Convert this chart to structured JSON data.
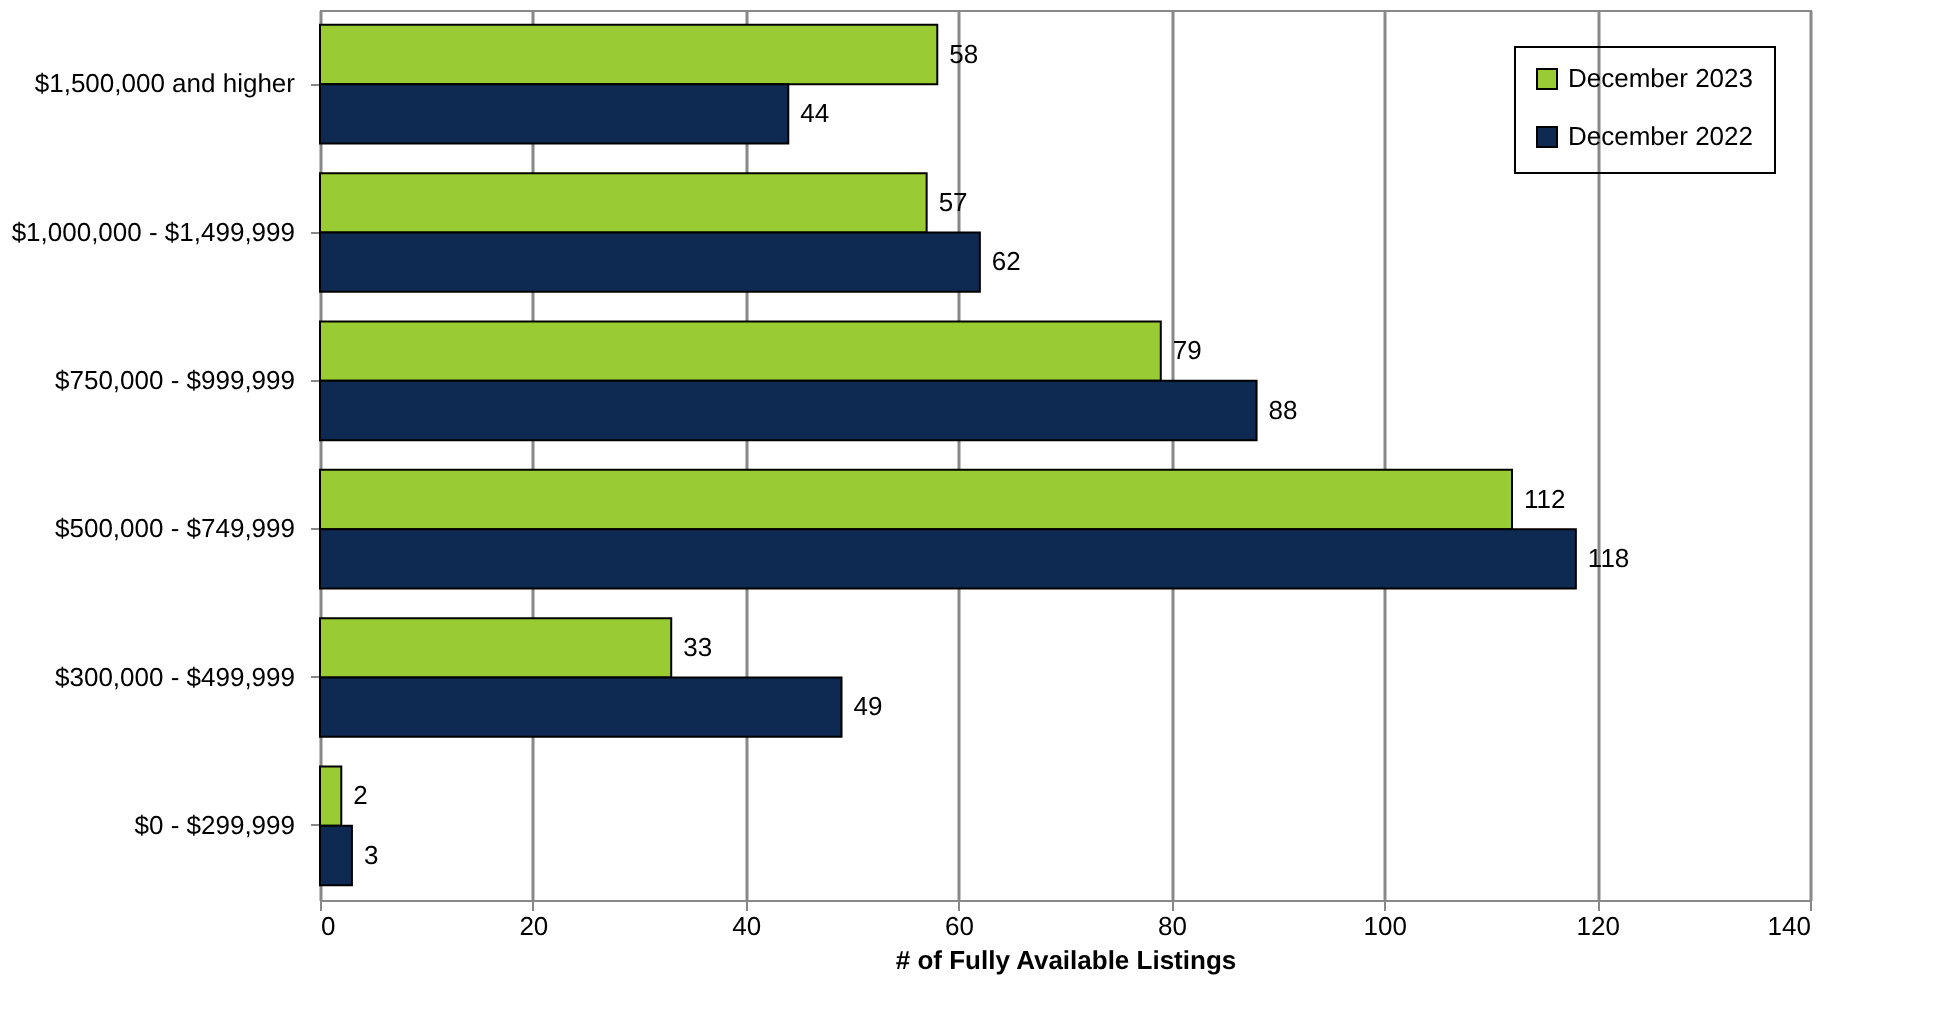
{
  "chart_data": {
    "type": "bar",
    "orientation": "horizontal",
    "xlabel": "# of Fully Available Listings",
    "categories": [
      "$1,500,000 and higher",
      "$1,000,000 - $1,499,999",
      "$750,000 - $999,999",
      "$500,000 - $749,999",
      "$300,000 - $499,999",
      "$0 - $299,999"
    ],
    "series": [
      {
        "name": "December 2023",
        "color": "#99cc33",
        "values": [
          58,
          57,
          79,
          112,
          33,
          2
        ]
      },
      {
        "name": "December 2022",
        "color": "#0f2a52",
        "values": [
          44,
          62,
          88,
          118,
          49,
          3
        ]
      }
    ],
    "xlim": [
      0,
      140
    ],
    "xticks": [
      0,
      20,
      40,
      60,
      80,
      100,
      120,
      140
    ],
    "grid": "x",
    "legend": "top right",
    "data_labels": true
  }
}
